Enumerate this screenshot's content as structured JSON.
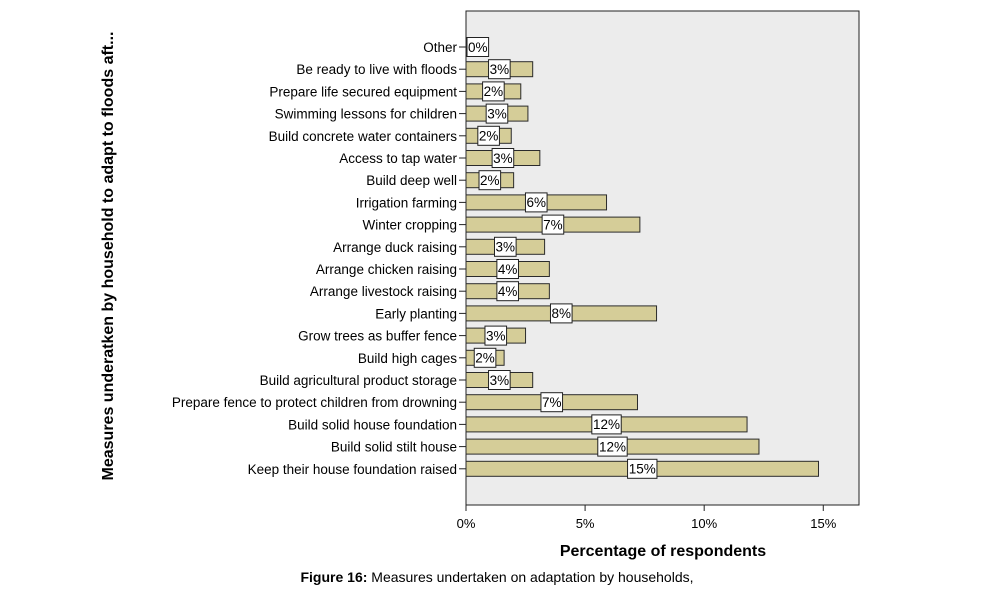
{
  "chart_data": {
    "type": "bar",
    "orientation": "horizontal",
    "categories": [
      "Other",
      "Be ready to live with floods",
      "Prepare life secured equipment",
      "Swimming lessons for children",
      "Build concrete water containers",
      "Access to tap water",
      "Build deep well",
      "Irrigation farming",
      "Winter cropping",
      "Arrange duck raising",
      "Arrange chicken raising",
      "Arrange livestock raising",
      "Early planting",
      "Grow trees as buffer fence",
      "Build high cages",
      "Build agricultural product storage",
      "Prepare fence to protect children from drowning",
      "Build solid house foundation",
      "Build solid stilt house",
      "Keep their house foundation raised"
    ],
    "values": [
      0.2,
      2.8,
      2.3,
      2.6,
      1.9,
      3.1,
      2.0,
      5.9,
      7.3,
      3.3,
      3.5,
      3.5,
      8.0,
      2.5,
      1.6,
      2.8,
      7.2,
      11.8,
      12.3,
      14.8
    ],
    "data_labels": [
      "0%",
      "3%",
      "2%",
      "3%",
      "2%",
      "3%",
      "2%",
      "6%",
      "7%",
      "3%",
      "4%",
      "4%",
      "8%",
      "3%",
      "2%",
      "3%",
      "7%",
      "12%",
      "12%",
      "15%"
    ],
    "xlabel": "Percentage of respondents",
    "ylabel": "Measures underatken by household to adapt to floods aft...",
    "xlim": [
      0,
      16.5
    ],
    "xticks": [
      0,
      5,
      10,
      15
    ],
    "xtick_labels": [
      "0%",
      "5%",
      "10%",
      "15%"
    ],
    "grid": false,
    "colors": {
      "bar_fill": "#d5cd98",
      "bar_stroke": "#2b2b2b",
      "plot_background": "#ececec",
      "label_box": "#ffffff"
    }
  },
  "caption": {
    "prefix": "Figure 16:",
    "text": " Measures undertaken on adaptation by households,"
  }
}
